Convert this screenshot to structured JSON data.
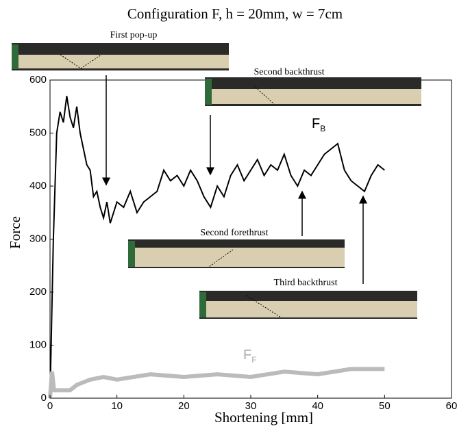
{
  "chart_data": {
    "type": "line",
    "title": "Configuration F, h = 20mm, w = 7cm",
    "xlabel": "Shortening [mm]",
    "ylabel": "Force",
    "xlim": [
      0,
      60
    ],
    "xticks": [
      0,
      10,
      20,
      30,
      40,
      50,
      60
    ],
    "ylim": [
      0,
      600
    ],
    "yticks": [
      0,
      100,
      200,
      300,
      400,
      500,
      600
    ],
    "annotations": [
      "First pop-up",
      "Second backthrust",
      "Second forethrust",
      "Third backthrust"
    ],
    "series": [
      {
        "name": "F",
        "subscript": "B",
        "color": "#000000",
        "x": [
          0,
          0.5,
          1,
          1.5,
          2,
          2.5,
          3,
          3.5,
          4,
          4.5,
          5,
          5.5,
          6,
          6.5,
          7,
          7.5,
          8,
          8.5,
          9,
          9.5,
          10,
          11,
          12,
          13,
          14,
          15,
          16,
          17,
          18,
          19,
          20,
          21,
          22,
          23,
          24,
          25,
          26,
          27,
          28,
          29,
          30,
          31,
          32,
          33,
          34,
          35,
          36,
          37,
          38,
          39,
          40,
          41,
          42,
          43,
          44,
          45,
          46,
          47,
          48,
          49,
          50
        ],
        "values": [
          0,
          300,
          500,
          540,
          520,
          570,
          530,
          510,
          550,
          500,
          470,
          440,
          430,
          380,
          390,
          360,
          340,
          370,
          330,
          350,
          370,
          360,
          390,
          350,
          370,
          380,
          390,
          430,
          410,
          420,
          400,
          430,
          410,
          380,
          360,
          400,
          380,
          420,
          440,
          410,
          430,
          450,
          420,
          440,
          430,
          460,
          420,
          400,
          430,
          420,
          440,
          460,
          470,
          480,
          430,
          410,
          400,
          390,
          420,
          440,
          430
        ]
      },
      {
        "name": "F",
        "subscript": "F",
        "color": "#bbbbbb",
        "x": [
          0,
          0.3,
          0.6,
          1,
          2,
          3,
          4,
          5,
          6,
          8,
          10,
          15,
          20,
          25,
          30,
          35,
          40,
          45,
          50
        ],
        "values": [
          0,
          50,
          15,
          15,
          15,
          15,
          25,
          30,
          35,
          40,
          35,
          45,
          40,
          45,
          40,
          50,
          45,
          55,
          55
        ]
      }
    ]
  }
}
